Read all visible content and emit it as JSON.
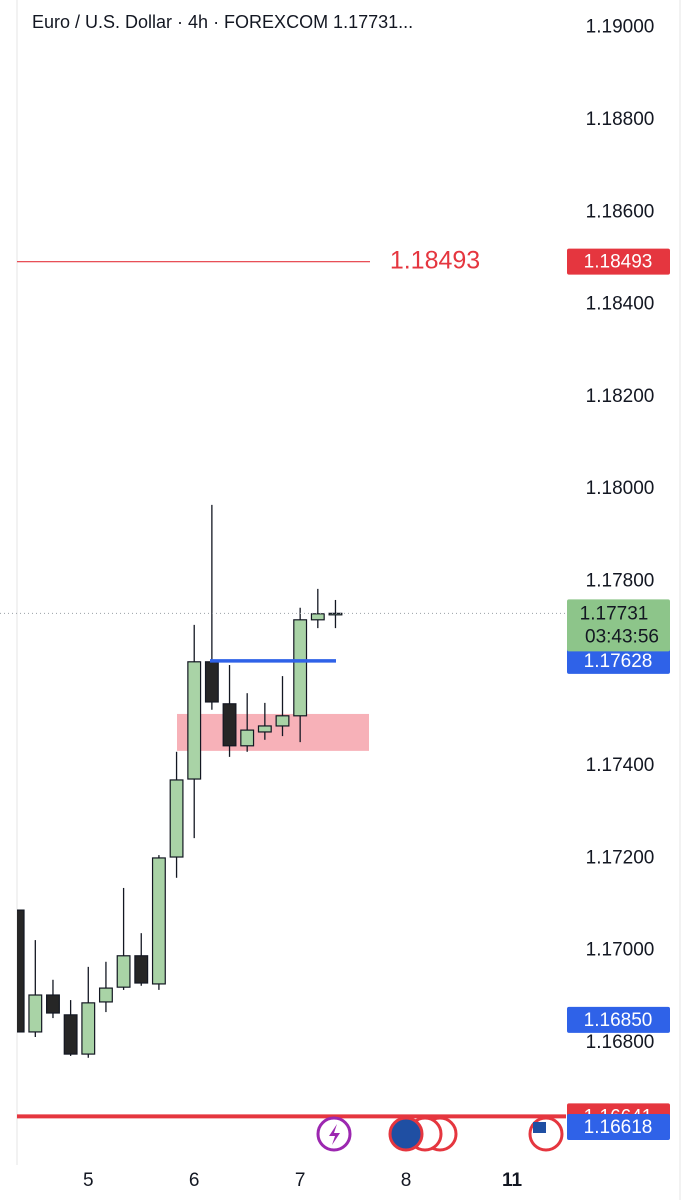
{
  "chart_data": {
    "type": "candlestick",
    "title": "Euro / U.S. Dollar · 4h · FOREXCOM  1.17731...",
    "x": [
      0,
      1,
      2,
      3,
      4,
      5,
      6,
      7,
      8,
      9,
      10,
      11,
      12,
      13,
      14,
      15,
      16,
      17,
      18
    ],
    "open": [
      1.17088,
      1.16824,
      1.16904,
      1.16861,
      1.16776,
      1.16889,
      1.16921,
      1.16989,
      1.16928,
      1.17203,
      1.17372,
      1.17626,
      1.17535,
      1.17444,
      1.17474,
      1.17487,
      1.17509,
      1.17717,
      1.17731
    ],
    "high": [
      1.17088,
      1.17023,
      1.16937,
      1.16893,
      1.16965,
      1.16976,
      1.17136,
      1.17038,
      1.17207,
      1.17431,
      1.17706,
      1.17966,
      1.17619,
      1.17558,
      1.17537,
      1.17595,
      1.17743,
      1.17784,
      1.1776
    ],
    "low": [
      1.16824,
      1.16813,
      1.16854,
      1.16772,
      1.16768,
      1.16867,
      1.16915,
      1.16924,
      1.16915,
      1.17158,
      1.17244,
      1.17522,
      1.1742,
      1.17431,
      1.17457,
      1.17465,
      1.17452,
      1.17699,
      1.17699
    ],
    "close": [
      1.16824,
      1.16904,
      1.16865,
      1.16776,
      1.16887,
      1.16919,
      1.16989,
      1.1693,
      1.17201,
      1.1737,
      1.17626,
      1.17539,
      1.17444,
      1.17478,
      1.17487,
      1.17509,
      1.17717,
      1.1773,
      1.17731
    ],
    "up_color": "#a9d3a6",
    "down_color": "#262626",
    "xlim": [
      -1,
      31
    ],
    "xticks": [
      {
        "value": 4,
        "label": "5"
      },
      {
        "value": 10,
        "label": "6"
      },
      {
        "value": 16,
        "label": "7"
      },
      {
        "value": 22,
        "label": "8"
      },
      {
        "value": 28,
        "label": "11"
      }
    ],
    "ylim": [
      1.1654,
      1.1906
    ],
    "yticks": [
      {
        "value": 1.19,
        "label": "1.19000"
      },
      {
        "value": 1.188,
        "label": "1.18800"
      },
      {
        "value": 1.186,
        "label": "1.18600"
      },
      {
        "value": 1.184,
        "label": "1.18400"
      },
      {
        "value": 1.182,
        "label": "1.18200"
      },
      {
        "value": 1.18,
        "label": "1.18000"
      },
      {
        "value": 1.178,
        "label": "1.17800"
      },
      {
        "value": 1.174,
        "label": "1.17400"
      },
      {
        "value": 1.172,
        "label": "1.17200"
      },
      {
        "value": 1.17,
        "label": "1.17000"
      },
      {
        "value": 1.168,
        "label": "1.16800"
      }
    ],
    "levels": [
      {
        "value": 1.18493,
        "label": "1.18493",
        "color": "#e5363f",
        "style": "ray-label"
      },
      {
        "value": 1.17628,
        "label": "1.17628",
        "color": "#2f62e8",
        "style": "segment"
      },
      {
        "value": 1.1685,
        "label": "1.16850",
        "color": "#2f62e8",
        "style": "badge"
      },
      {
        "value": 1.16641,
        "label": "1.16641",
        "color": "#e5363f",
        "style": "full"
      },
      {
        "value": 1.16618,
        "label": "1.16618",
        "color": "#2f62e8",
        "style": "badge"
      }
    ],
    "zone": {
      "from": 1.17433,
      "to": 1.17513,
      "color": "#f6a9b0"
    },
    "last_price": {
      "value": 1.17731,
      "label": "1.17731",
      "color": "#8dc58a"
    },
    "countdown": "03:43:56"
  }
}
